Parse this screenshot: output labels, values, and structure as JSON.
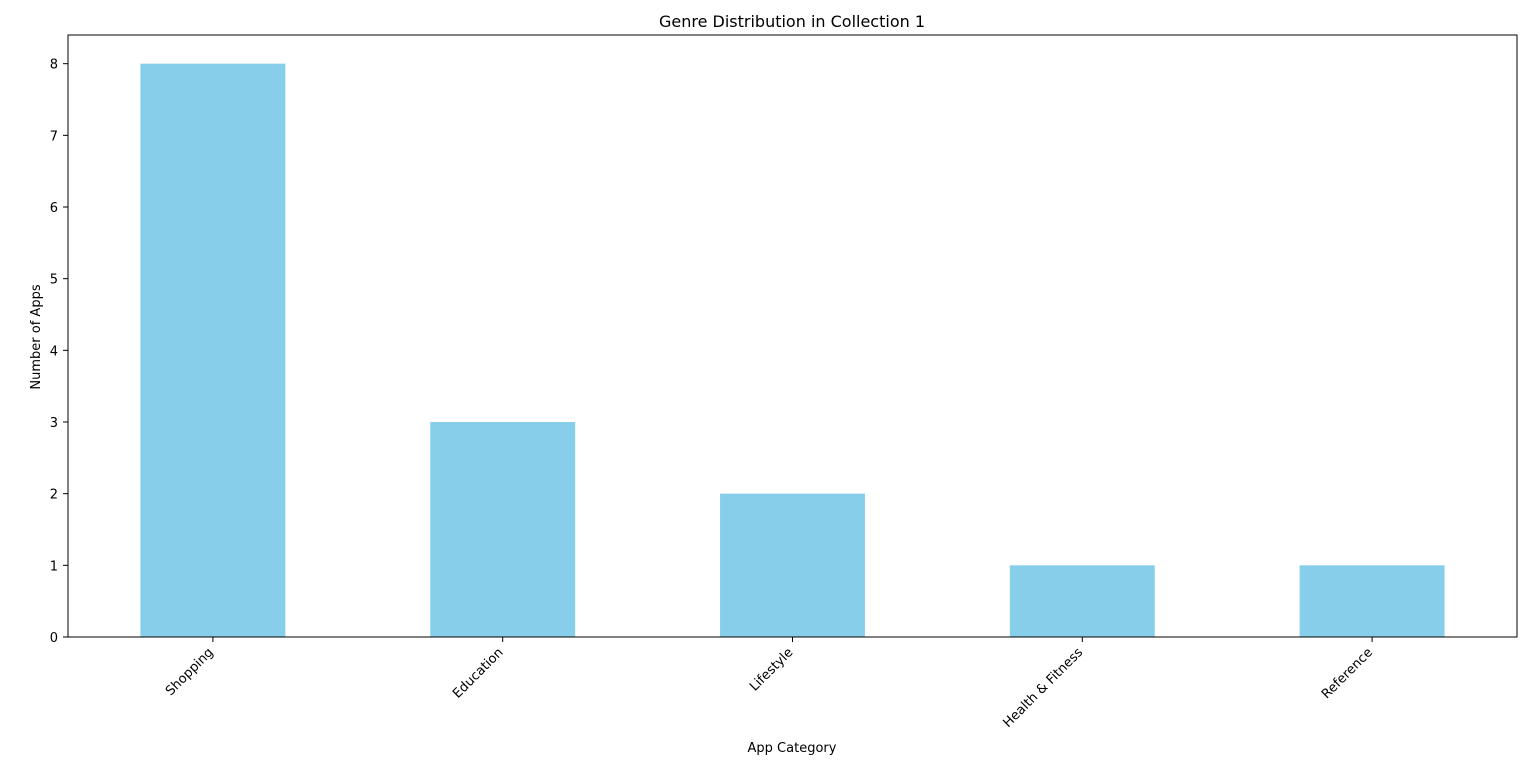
{
  "chart_data": {
    "type": "bar",
    "title": "Genre Distribution in Collection 1",
    "xlabel": "App Category",
    "ylabel": "Number of Apps",
    "categories": [
      "Shopping",
      "Education",
      "Lifestyle",
      "Health & Fitness",
      "Reference"
    ],
    "values": [
      8,
      3,
      2,
      1,
      1
    ],
    "ylim": [
      0,
      8.4
    ],
    "yticks": [
      0,
      1,
      2,
      3,
      4,
      5,
      6,
      7,
      8
    ],
    "bar_color": "#87ceeb",
    "grid": false,
    "legend": "none"
  }
}
